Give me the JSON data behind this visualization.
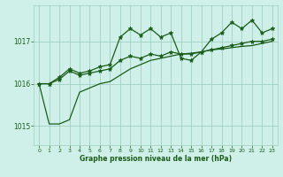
{
  "xlabel": "Graphe pression niveau de la mer (hPa)",
  "bg_color": "#cff0e8",
  "plot_bg_color": "#cff0e8",
  "grid_color": "#a0cfc0",
  "line_color": "#1a5c1a",
  "marker_color": "#1a5c1a",
  "xlim": [
    -0.5,
    23.5
  ],
  "ylim": [
    1014.55,
    1017.85
  ],
  "yticks": [
    1015,
    1016,
    1017
  ],
  "xticks": [
    0,
    1,
    2,
    3,
    4,
    5,
    6,
    7,
    8,
    9,
    10,
    11,
    12,
    13,
    14,
    15,
    16,
    17,
    18,
    19,
    20,
    21,
    22,
    23
  ],
  "hours": [
    0,
    1,
    2,
    3,
    4,
    5,
    6,
    7,
    8,
    9,
    10,
    11,
    12,
    13,
    14,
    15,
    16,
    17,
    18,
    19,
    20,
    21,
    22,
    23
  ],
  "line_smooth": [
    1016.0,
    1015.05,
    1015.05,
    1015.15,
    1015.8,
    1015.9,
    1016.0,
    1016.05,
    1016.2,
    1016.35,
    1016.45,
    1016.55,
    1016.6,
    1016.65,
    1016.7,
    1016.72,
    1016.75,
    1016.8,
    1016.82,
    1016.85,
    1016.88,
    1016.9,
    1016.95,
    1017.0
  ],
  "line_mid": [
    1016.0,
    1016.0,
    1016.1,
    1016.3,
    1016.2,
    1016.25,
    1016.3,
    1016.35,
    1016.55,
    1016.65,
    1016.6,
    1016.7,
    1016.65,
    1016.75,
    1016.7,
    1016.7,
    1016.75,
    1016.8,
    1016.85,
    1016.9,
    1016.95,
    1017.0,
    1017.0,
    1017.05
  ],
  "line_zigzag": [
    1016.0,
    1016.0,
    1016.15,
    1016.35,
    1016.25,
    1016.3,
    1016.4,
    1016.45,
    1017.1,
    1017.3,
    1017.15,
    1017.3,
    1017.1,
    1017.2,
    1016.6,
    1016.55,
    1016.75,
    1017.05,
    1017.2,
    1017.45,
    1017.3,
    1017.5,
    1017.2,
    1017.3
  ]
}
